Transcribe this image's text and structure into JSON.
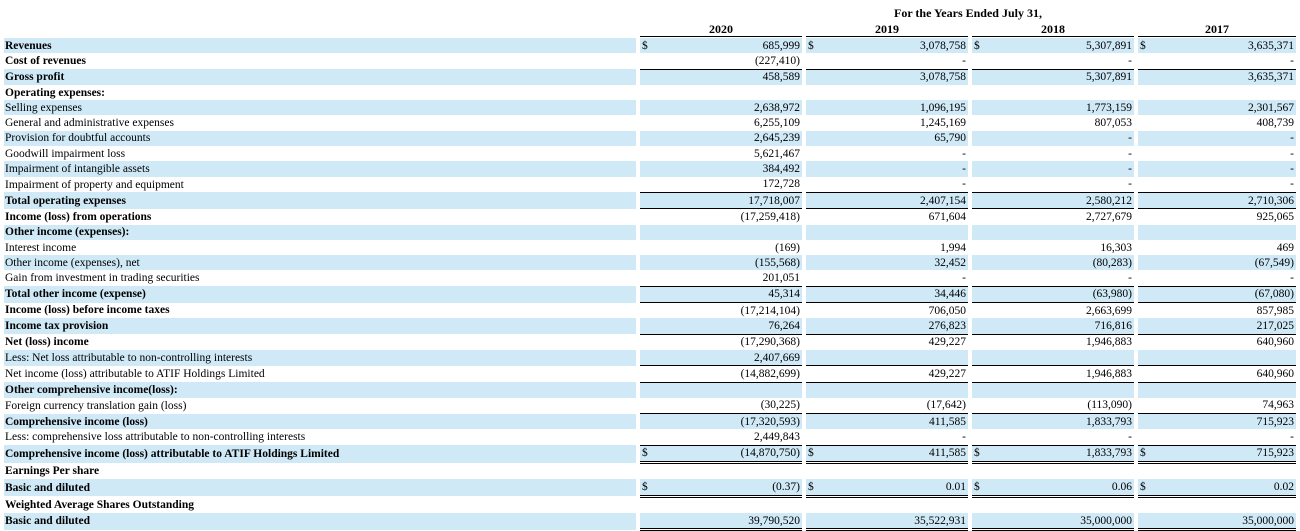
{
  "header": {
    "period_label": "For the Years Ended July 31,",
    "years": [
      "2020",
      "2019",
      "2018",
      "2017"
    ]
  },
  "colors": {
    "row_shade": "#cfe9f7"
  },
  "rows": [
    {
      "label": "Revenues",
      "bold": true,
      "shade": true,
      "currency": true,
      "values": [
        "685,999",
        "3,078,758",
        "5,307,891",
        "3,635,371"
      ]
    },
    {
      "label": "Cost of revenues",
      "bold": true,
      "shade": false,
      "values": [
        "(227,410)",
        "-",
        "-",
        "-"
      ],
      "underline": true
    },
    {
      "label": "Gross profit",
      "bold": true,
      "shade": true,
      "values": [
        "458,589",
        "3,078,758",
        "5,307,891",
        "3,635,371"
      ]
    },
    {
      "label": "Operating expenses:",
      "bold": true,
      "shade": false,
      "values": [
        "",
        "",
        "",
        ""
      ]
    },
    {
      "label": "Selling expenses",
      "bold": false,
      "shade": true,
      "values": [
        "2,638,972",
        "1,096,195",
        "1,773,159",
        "2,301,567"
      ]
    },
    {
      "label": "General and administrative expenses",
      "bold": false,
      "shade": false,
      "values": [
        "6,255,109",
        "1,245,169",
        "807,053",
        "408,739"
      ]
    },
    {
      "label": "Provision for doubtful accounts",
      "bold": false,
      "shade": true,
      "values": [
        "2,645,239",
        "65,790",
        "-",
        "-"
      ]
    },
    {
      "label": "Goodwill impairment loss",
      "bold": false,
      "shade": false,
      "values": [
        "5,621,467",
        "-",
        "-",
        "-"
      ]
    },
    {
      "label": "Impairment of intangible assets",
      "bold": false,
      "shade": true,
      "values": [
        "384,492",
        "-",
        "-",
        "-"
      ]
    },
    {
      "label": "Impairment of property and equipment",
      "bold": false,
      "shade": false,
      "values": [
        "172,728",
        "-",
        "-",
        "-"
      ],
      "underline": true
    },
    {
      "label": "Total operating expenses",
      "bold": true,
      "shade": true,
      "values": [
        "17,718,007",
        "2,407,154",
        "2,580,212",
        "2,710,306"
      ],
      "underline": true
    },
    {
      "label": "Income (loss) from operations",
      "bold": true,
      "shade": false,
      "values": [
        "(17,259,418)",
        "671,604",
        "2,727,679",
        "925,065"
      ]
    },
    {
      "label": "Other income (expenses):",
      "bold": true,
      "shade": true,
      "values": [
        "",
        "",
        "",
        ""
      ]
    },
    {
      "label": "Interest income",
      "bold": false,
      "shade": false,
      "values": [
        "(169)",
        "1,994",
        "16,303",
        "469"
      ]
    },
    {
      "label": "Other income (expenses), net",
      "bold": false,
      "shade": true,
      "values": [
        "(155,568)",
        "32,452",
        "(80,283)",
        "(67,549)"
      ]
    },
    {
      "label": "Gain from investment in trading securities",
      "bold": false,
      "shade": false,
      "values": [
        "201,051",
        "-",
        "-",
        "-"
      ],
      "underline": true
    },
    {
      "label": "Total other income (expense)",
      "bold": true,
      "shade": true,
      "values": [
        "45,314",
        "34,446",
        "(63,980)",
        "(67,080)"
      ],
      "underline": true
    },
    {
      "label": "Income (loss) before income taxes",
      "bold": true,
      "shade": false,
      "values": [
        "(17,214,104)",
        "706,050",
        "2,663,699",
        "857,985"
      ]
    },
    {
      "label": "Income tax provision",
      "bold": true,
      "shade": true,
      "values": [
        "76,264",
        "276,823",
        "716,816",
        "217,025"
      ],
      "underline": true
    },
    {
      "label": "Net (loss) income",
      "bold": true,
      "shade": false,
      "values": [
        "(17,290,368)",
        "429,227",
        "1,946,883",
        "640,960"
      ]
    },
    {
      "label": "Less: Net loss attributable to non-controlling interests",
      "bold": false,
      "shade": true,
      "values": [
        "2,407,669",
        "",
        "",
        ""
      ],
      "underline": true
    },
    {
      "label": "Net income (loss) attributable to ATIF Holdings Limited",
      "bold": false,
      "shade": false,
      "values": [
        "(14,882,699)",
        "429,227",
        "1,946,883",
        "640,960"
      ],
      "underline": true
    },
    {
      "label": "Other comprehensive income(loss):",
      "bold": true,
      "shade": true,
      "values": [
        "",
        "",
        "",
        ""
      ]
    },
    {
      "label": "Foreign currency translation gain (loss)",
      "bold": false,
      "shade": false,
      "values": [
        "(30,225)",
        "(17,642)",
        "(113,090)",
        "74,963"
      ],
      "underline": true
    },
    {
      "label": "Comprehensive income (loss)",
      "bold": true,
      "shade": true,
      "values": [
        "(17,320,593)",
        "411,585",
        "1,833,793",
        "715,923"
      ]
    },
    {
      "label": "Less: comprehensive loss attributable to non-controlling interests",
      "bold": false,
      "shade": false,
      "values": [
        "2,449,843",
        "-",
        "-",
        "-"
      ],
      "underline": true
    },
    {
      "label": "Comprehensive income (loss) attributable to ATIF Holdings Limited",
      "bold": true,
      "shade": true,
      "currency": true,
      "values": [
        "(14,870,750)",
        "411,585",
        "1,833,793",
        "715,923"
      ],
      "double": true
    },
    {
      "label": "Earnings Per share",
      "bold": true,
      "shade": false,
      "values": [
        "",
        "",
        "",
        ""
      ]
    },
    {
      "label": "Basic and diluted",
      "bold": true,
      "shade": true,
      "currency": true,
      "values": [
        "(0.37)",
        "0.01",
        "0.06",
        "0.02"
      ],
      "double": true
    },
    {
      "label": "Weighted Average Shares Outstanding",
      "bold": true,
      "shade": false,
      "values": [
        "",
        "",
        "",
        ""
      ]
    },
    {
      "label": "Basic and diluted",
      "bold": true,
      "shade": true,
      "values": [
        "39,790,520",
        "35,522,931",
        "35,000,000",
        "35,000,000"
      ],
      "double": true
    }
  ],
  "currency_symbol": "$"
}
